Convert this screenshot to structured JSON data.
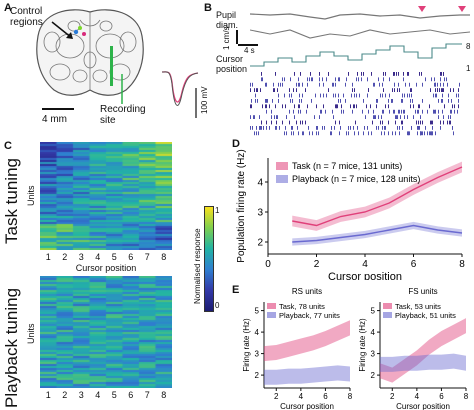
{
  "panels": {
    "a": {
      "label": "A",
      "control_label": "Control\nregions",
      "recording_label": "Recording\nsite",
      "scale_mm": "4 mm",
      "scale_mv": "100 mV"
    },
    "b": {
      "label": "B",
      "pupil_label": "Pupil\ndiam.",
      "speed_scale": "1 cm/s",
      "time_scale": "4 s",
      "cursor_label": "Cursor\nposition",
      "cursor_min": "1",
      "cursor_max": "8"
    },
    "c": {
      "label": "C",
      "task_tuning": "Task tuning",
      "playback_tuning": "Playback tuning",
      "units_label": "Units",
      "cursor_label": "Cursor position",
      "cursor_ticks": [
        "1",
        "2",
        "3",
        "4",
        "5",
        "6",
        "7",
        "8"
      ],
      "colorbar_label": "Normalised response",
      "colorbar_ticks": [
        "1",
        "0"
      ]
    },
    "d": {
      "label": "D",
      "ylabel": "Population firing rate (Hz)",
      "xlabel": "Cursor position",
      "xticks": [
        "0",
        "2",
        "4",
        "6",
        "8"
      ],
      "yticks": [
        "2",
        "3",
        "4"
      ],
      "legend_task": "Task (n = 7 mice, 131 units)",
      "legend_playback": "Playback (n = 7 mice, 128 units)",
      "color_task": "#e0407a",
      "color_playback": "#6a6ad0"
    },
    "e": {
      "label": "E",
      "left_title": "RS units",
      "right_title": "FS units",
      "left_task": "Task, 78 units",
      "left_playback": "Playback, 77 units",
      "right_task": "Task, 53 units",
      "right_playback": "Playback, 51 units",
      "ylabel": "Firing rate (Hz)",
      "xlabel": "Cursor position",
      "xticks": [
        "2",
        "4",
        "6",
        "8"
      ],
      "left_yticks": [
        "2",
        "3",
        "4",
        "5"
      ],
      "right_yticks": [
        "2",
        "3",
        "4",
        "5"
      ]
    }
  },
  "chart_data": [
    {
      "type": "line",
      "panel": "D",
      "x": [
        1,
        2,
        3,
        4,
        5,
        6,
        7,
        8
      ],
      "series": [
        {
          "name": "Task (n = 7 mice, 131 units)",
          "values": [
            2.7,
            2.55,
            2.85,
            3.0,
            3.3,
            3.75,
            4.15,
            4.5
          ]
        },
        {
          "name": "Playback (n = 7 mice, 128 units)",
          "values": [
            2.0,
            2.05,
            2.15,
            2.25,
            2.4,
            2.55,
            2.4,
            2.3
          ]
        }
      ],
      "xlabel": "Cursor position",
      "ylabel": "Population firing rate (Hz)",
      "xlim": [
        0,
        8
      ],
      "ylim": [
        1.6,
        4.8
      ]
    },
    {
      "type": "area",
      "panel": "E-RS",
      "title": "RS units",
      "x": [
        1,
        2,
        3,
        4,
        5,
        6,
        7,
        8
      ],
      "series": [
        {
          "name": "Task, 78 units",
          "values": [
            3.0,
            3.05,
            3.2,
            3.35,
            3.5,
            3.7,
            3.95,
            4.2
          ]
        },
        {
          "name": "Playback, 77 units",
          "values": [
            1.9,
            1.9,
            1.95,
            1.95,
            2.0,
            2.05,
            2.1,
            2.05
          ]
        }
      ],
      "xlim": [
        1,
        8
      ],
      "ylim": [
        1.4,
        5.4
      ]
    },
    {
      "type": "area",
      "panel": "E-FS",
      "title": "FS units",
      "x": [
        1,
        2,
        3,
        4,
        5,
        6,
        7,
        8
      ],
      "series": [
        {
          "name": "Task, 53 units",
          "values": [
            2.2,
            2.0,
            2.4,
            2.8,
            3.3,
            3.7,
            4.0,
            4.3
          ]
        },
        {
          "name": "Playback, 51 units",
          "values": [
            2.5,
            2.5,
            2.55,
            2.55,
            2.6,
            2.6,
            2.65,
            2.55
          ]
        }
      ],
      "xlim": [
        1,
        8
      ],
      "ylim": [
        1.4,
        5.4
      ]
    }
  ]
}
